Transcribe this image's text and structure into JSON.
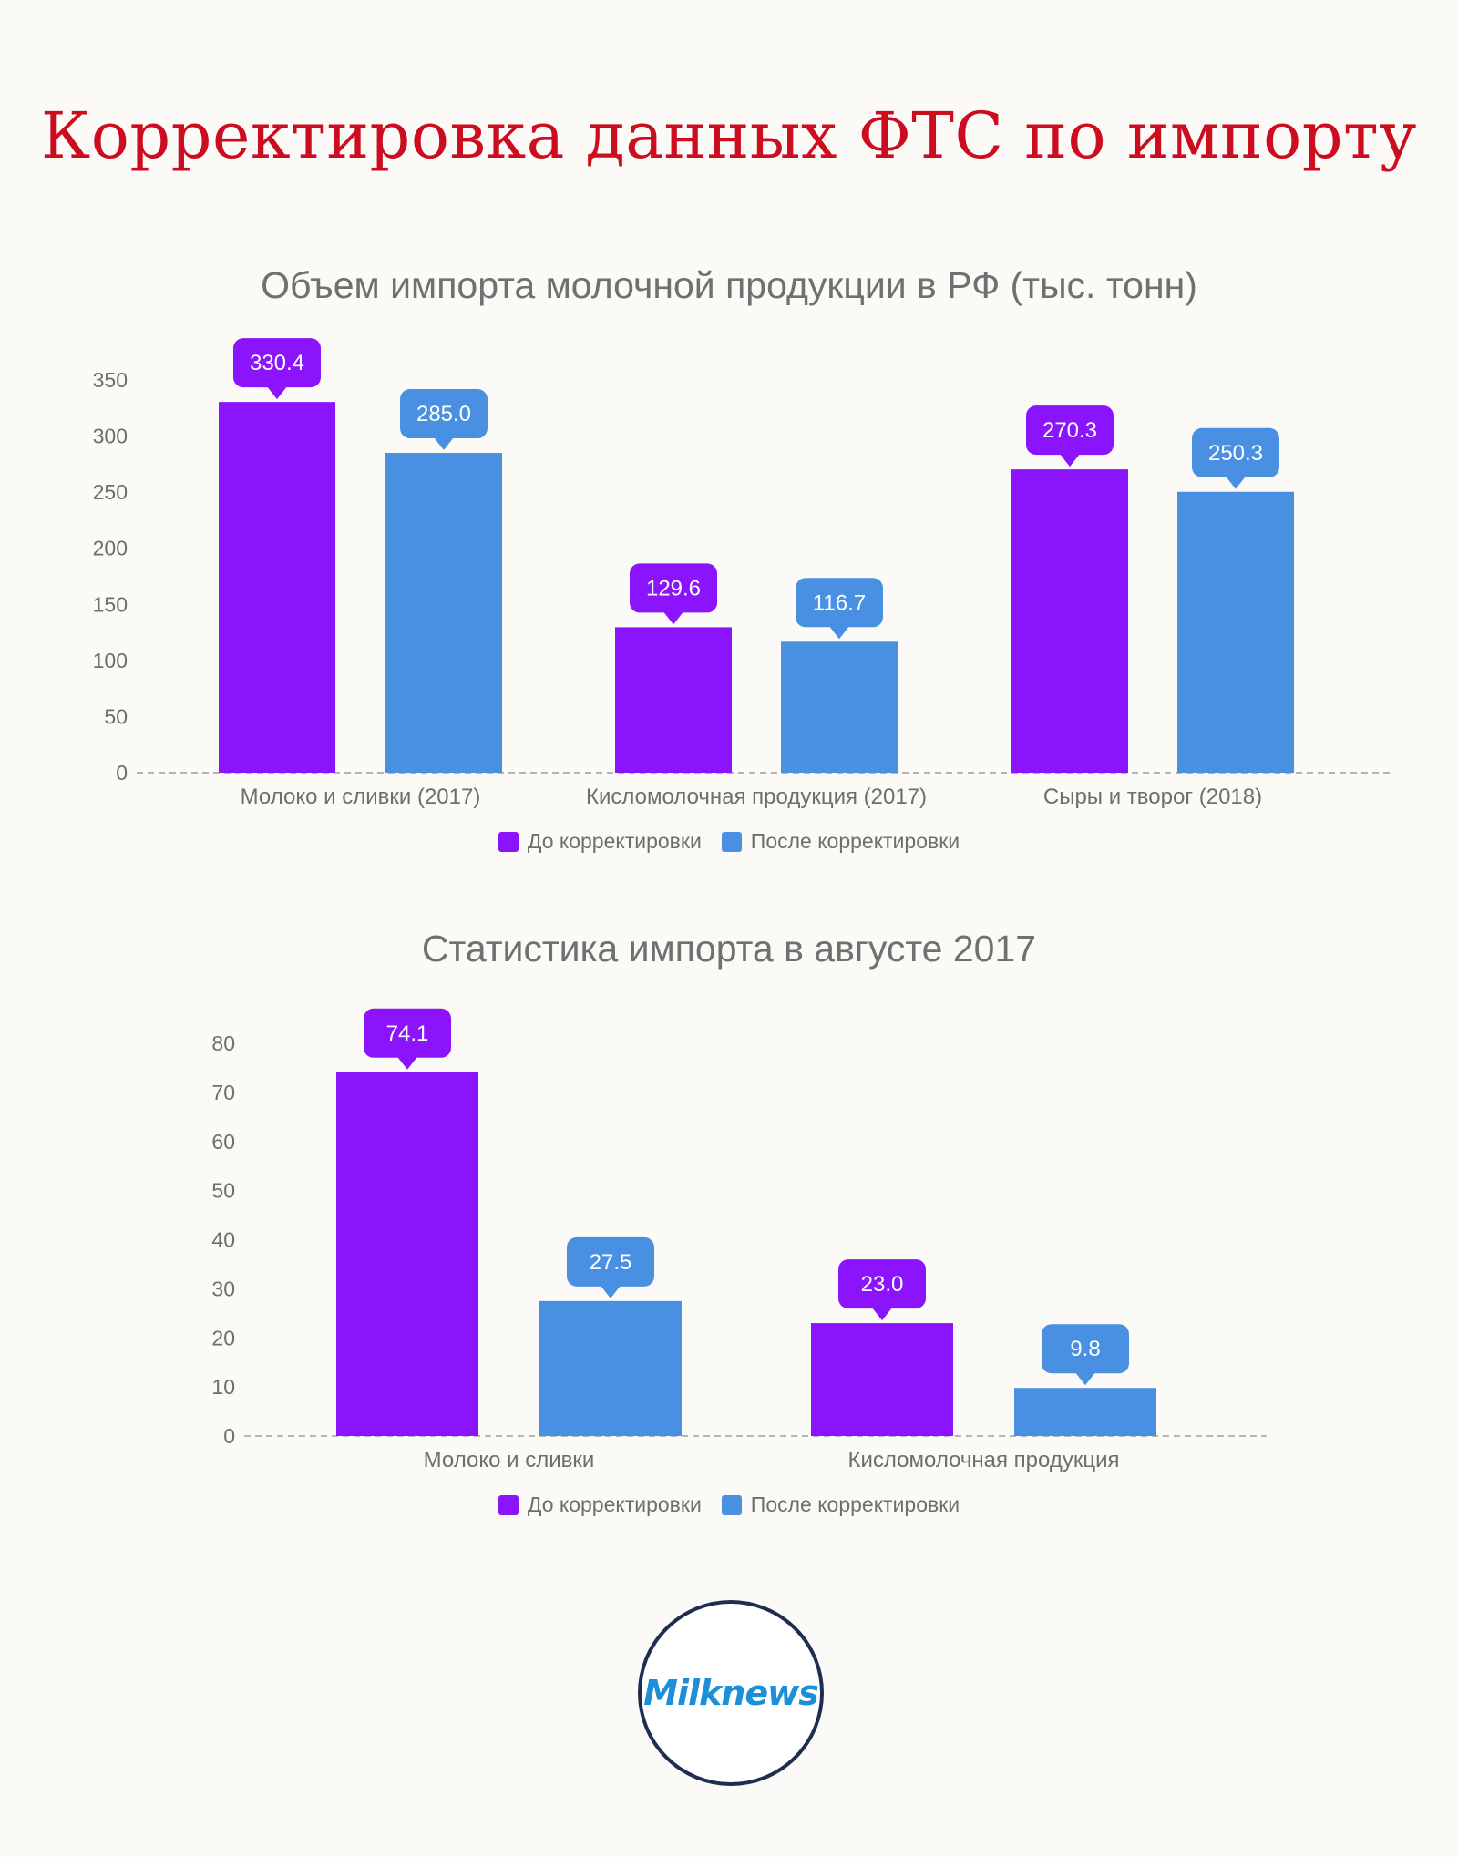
{
  "page": {
    "title": "Корректировка данных ФТС по импорту",
    "logo_text": "Milknews"
  },
  "colors": {
    "before": "#8c14fc",
    "after": "#4a90e2",
    "title": "#cc0d1f",
    "text": "#707070"
  },
  "legend": [
    {
      "label": "До корректировки",
      "color": "#8c14fc"
    },
    {
      "label": "После корректировки",
      "color": "#4a90e2"
    }
  ],
  "chart_data": [
    {
      "type": "bar",
      "title": "Объем импорта молочной продукции в РФ (тыс. тонн)",
      "categories": [
        "Молоко и сливки (2017)",
        "Кисломолочная продукция (2017)",
        "Сыры и творог (2018)"
      ],
      "series": [
        {
          "name": "До корректировки",
          "color": "#8c14fc",
          "values": [
            330.4,
            129.6,
            270.3
          ]
        },
        {
          "name": "После корректировки",
          "color": "#4a90e2",
          "values": [
            285.0,
            116.7,
            250.3
          ]
        }
      ],
      "value_labels": [
        [
          "330.4",
          "129.6",
          "270.3"
        ],
        [
          "285.0",
          "116.7",
          "250.3"
        ]
      ],
      "ylim": [
        0,
        350
      ],
      "yticks": [
        0,
        50,
        100,
        150,
        200,
        250,
        300,
        350
      ],
      "grid": false,
      "legend_position": "bottom"
    },
    {
      "type": "bar",
      "title": "Статистика импорта в августе 2017",
      "categories": [
        "Молоко и сливки",
        "Кисломолочная продукция"
      ],
      "series": [
        {
          "name": "До корректировки",
          "color": "#8c14fc",
          "values": [
            74.1,
            23.0
          ]
        },
        {
          "name": "После корректировки",
          "color": "#4a90e2",
          "values": [
            27.5,
            9.8
          ]
        }
      ],
      "value_labels": [
        [
          "74.1",
          "23.0"
        ],
        [
          "27.5",
          "9.8"
        ]
      ],
      "ylim": [
        0,
        80
      ],
      "yticks": [
        0,
        10,
        20,
        30,
        40,
        50,
        60,
        70,
        80
      ],
      "grid": false,
      "legend_position": "bottom"
    }
  ]
}
